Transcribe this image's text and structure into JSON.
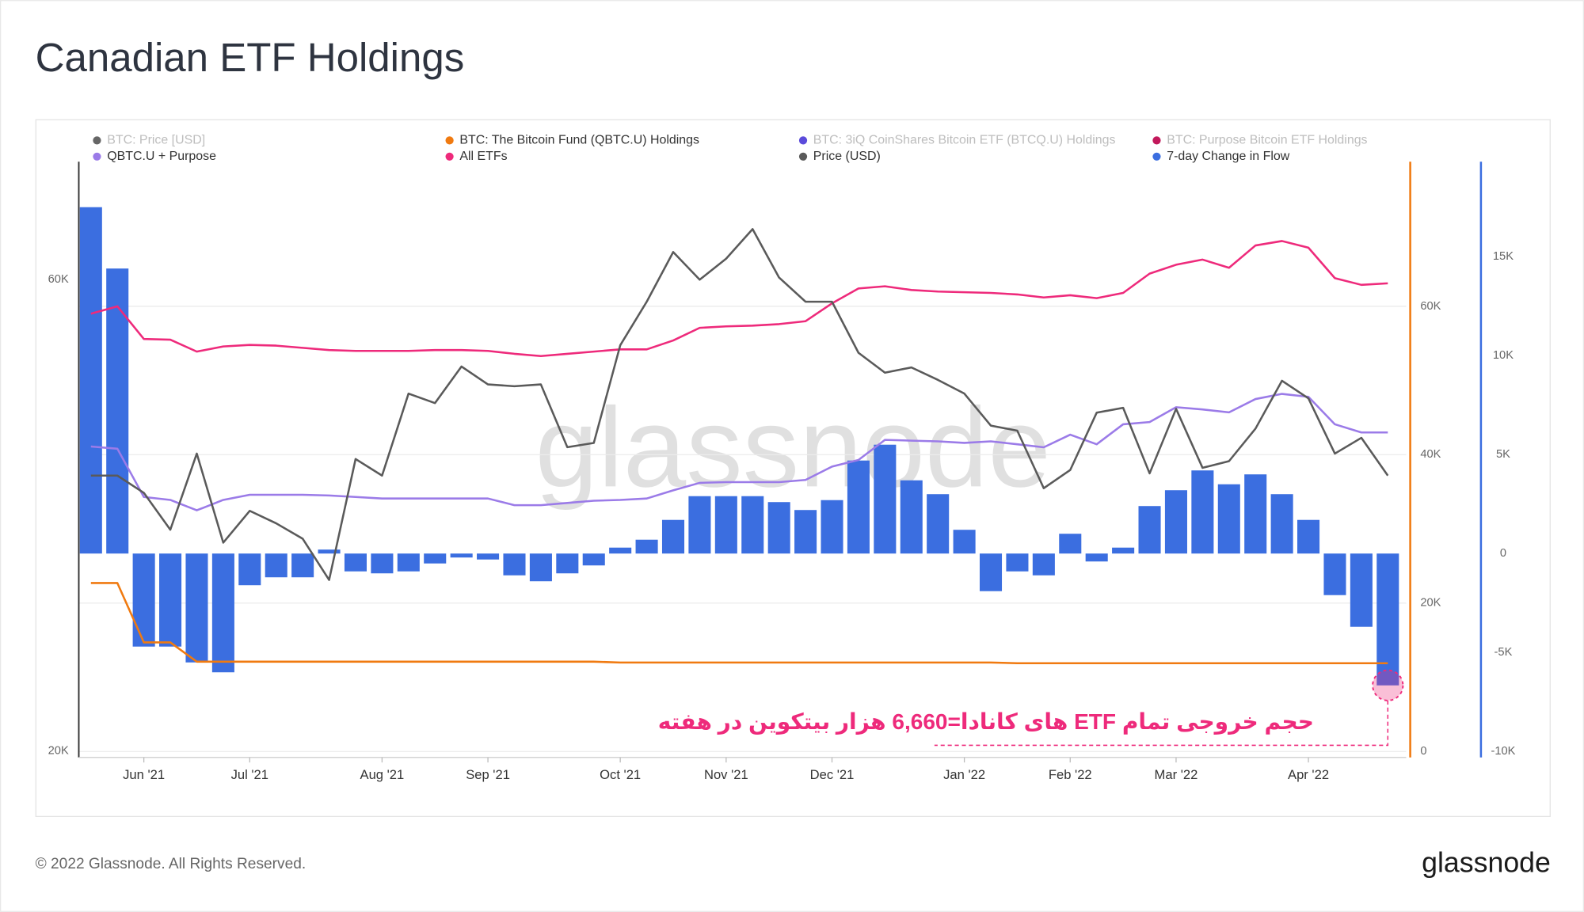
{
  "chart_data": {
    "type": "combo",
    "title": "Canadian ETF Holdings",
    "watermark": "glassnode",
    "categories": [
      null,
      null,
      "Jun '21",
      null,
      null,
      null,
      "Jul '21",
      null,
      null,
      null,
      null,
      "Aug '21",
      null,
      null,
      null,
      "Sep '21",
      null,
      null,
      null,
      null,
      "Oct '21",
      null,
      null,
      null,
      "Nov '21",
      null,
      null,
      null,
      "Dec '21",
      null,
      null,
      null,
      null,
      "Jan '22",
      null,
      null,
      null,
      "Feb '22",
      null,
      null,
      null,
      "Mar '22",
      null,
      null,
      null,
      null,
      "Apr '22",
      null,
      null,
      null
    ],
    "yscale": "log",
    "ylim": [
      19700,
      79000
    ],
    "yticks": [
      {
        "value": 20000,
        "label": "20K"
      },
      {
        "value": 60000,
        "label": "60K"
      }
    ],
    "y2lim": [
      -800,
      79500
    ],
    "y2ticks": [
      0,
      {
        "value": 20000,
        "label": "20K"
      },
      {
        "value": 40000,
        "label": "40K"
      },
      {
        "value": 60000,
        "label": "60K"
      }
    ],
    "y3lim": [
      -10300,
      19800
    ],
    "y3ticks": [
      {
        "value": -10000,
        "label": "-10K"
      },
      {
        "value": -5000,
        "label": "-5K"
      },
      0,
      {
        "value": 5000,
        "label": "5K"
      },
      {
        "value": 10000,
        "label": "10K"
      },
      {
        "value": 15000,
        "label": "15K"
      }
    ],
    "grid": true,
    "legend": "top",
    "series": [
      {
        "name": "BTC: Price [USD]",
        "color": "#666666",
        "hidden": true
      },
      {
        "name": "BTC: The Bitcoin Fund (QBTC.U) Holdings",
        "color": "#f07a10",
        "type": "line",
        "axis": "y2",
        "values": [
          22700,
          22700,
          14700,
          14700,
          12100,
          12100,
          12100,
          12100,
          12100,
          12100,
          12100,
          12100,
          12100,
          12100,
          12100,
          12100,
          12100,
          12100,
          12100,
          12100,
          12000,
          12000,
          12000,
          12000,
          12000,
          12000,
          12000,
          12000,
          12000,
          12000,
          12000,
          12000,
          12000,
          12000,
          12000,
          11900,
          11900,
          11900,
          11900,
          11900,
          11900,
          11900,
          11900,
          11900,
          11900,
          11900,
          11900,
          11900,
          11900,
          11900
        ]
      },
      {
        "name": "BTC: 3iQ CoinShares Bitcoin ETF (BTCQ.U) Holdings",
        "color": "#5b4bdb",
        "hidden": true
      },
      {
        "name": "BTC: Purpose Bitcoin ETF Holdings",
        "color": "#c2185b",
        "hidden": true
      },
      {
        "name": "QBTC.U + Purpose",
        "color": "#9b7be8",
        "type": "line",
        "axis": "y2",
        "values": [
          41100,
          40800,
          34300,
          33900,
          32500,
          33900,
          34600,
          34600,
          34600,
          34500,
          34300,
          34100,
          34100,
          34100,
          34100,
          34100,
          33200,
          33200,
          33500,
          33800,
          33900,
          34100,
          35200,
          36200,
          36300,
          36300,
          36300,
          36600,
          38400,
          39300,
          42000,
          41900,
          41800,
          41600,
          41800,
          41400,
          41000,
          42700,
          41400,
          44100,
          44400,
          46400,
          46100,
          45700,
          47500,
          48200,
          47800,
          44100,
          43000,
          43000
        ]
      },
      {
        "name": "All ETFs",
        "color": "#ee2a7b",
        "type": "line",
        "axis": "y2",
        "values": [
          59000,
          60000,
          55600,
          55500,
          53900,
          54600,
          54800,
          54700,
          54400,
          54100,
          54000,
          54000,
          54000,
          54100,
          54100,
          54000,
          53600,
          53300,
          53600,
          53900,
          54200,
          54200,
          55400,
          57100,
          57300,
          57400,
          57600,
          58000,
          60400,
          62400,
          62700,
          62200,
          62000,
          61900,
          61800,
          61600,
          61200,
          61500,
          61100,
          61800,
          64400,
          65600,
          66300,
          65200,
          68200,
          68800,
          67900,
          63800,
          62900,
          63100
        ]
      },
      {
        "name": "Price (USD)",
        "color": "#5a5a5a",
        "type": "line",
        "axis": "y",
        "values": [
          38000,
          38000,
          36500,
          33500,
          40000,
          32500,
          35000,
          34000,
          32800,
          29800,
          39500,
          38000,
          46000,
          45000,
          49000,
          47000,
          46800,
          47000,
          40600,
          41000,
          51500,
          57000,
          64000,
          60000,
          63000,
          67500,
          60300,
          57000,
          57000,
          50600,
          48300,
          48900,
          47500,
          46000,
          42700,
          42200,
          36900,
          38500,
          44000,
          44500,
          38200,
          44400,
          38700,
          39300,
          42400,
          47400,
          45500,
          40000,
          41500,
          38000
        ]
      },
      {
        "name": "7-day Change in Flow",
        "color": "#3b6ee0",
        "type": "bar",
        "axis": "y3",
        "values": [
          17500,
          14400,
          -4700,
          -4700,
          -5500,
          -6000,
          -1600,
          -1200,
          -1200,
          200,
          -900,
          -1000,
          -900,
          -500,
          -200,
          -300,
          -1100,
          -1400,
          -1000,
          -600,
          300,
          700,
          1700,
          2900,
          2900,
          2900,
          2600,
          2200,
          2700,
          4700,
          5500,
          3700,
          3000,
          1200,
          -1900,
          -900,
          -1100,
          1000,
          -400,
          300,
          2400,
          3200,
          4200,
          3500,
          4000,
          3000,
          1700,
          -2100,
          -3700,
          -6660
        ]
      }
    ],
    "annotation": "حجم خروجی تمام ETF های کانادا=6,660 هزار بیتکوین در هفته"
  },
  "footer": "© 2022 Glassnode. All Rights Reserved.",
  "logo": "glassnode"
}
